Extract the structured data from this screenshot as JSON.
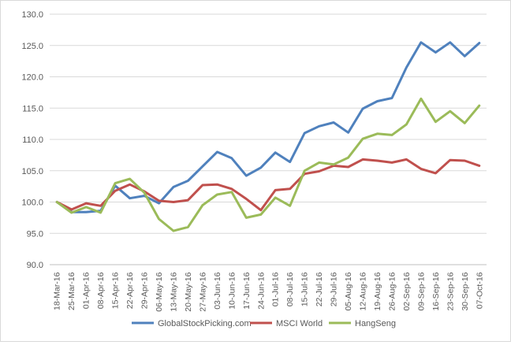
{
  "chart_data": {
    "type": "line",
    "title": "",
    "xlabel": "",
    "ylabel": "",
    "ylim": [
      90,
      130
    ],
    "yticks": [
      90,
      95,
      100,
      105,
      110,
      115,
      120,
      125,
      130
    ],
    "ytick_labels": [
      "90.0",
      "95.0",
      "100.0",
      "105.0",
      "110.0",
      "115.0",
      "120.0",
      "125.0",
      "130.0"
    ],
    "grid": true,
    "legend_position": "bottom",
    "x": [
      "18-Mar-16",
      "25-Mar-16",
      "01-Apr-16",
      "08-Apr-16",
      "15-Apr-16",
      "22-Apr-16",
      "29-Apr-16",
      "06-May-16",
      "13-May-16",
      "20-May-16",
      "27-May-16",
      "03-Jun-16",
      "10-Jun-16",
      "17-Jun-16",
      "24-Jun-16",
      "01-Jul-16",
      "08-Jul-16",
      "15-Jul-16",
      "22-Jul-16",
      "29-Jul-16",
      "05-Aug-16",
      "12-Aug-16",
      "19-Aug-16",
      "26-Aug-16",
      "02-Sep-16",
      "09-Sep-16",
      "16-Sep-16",
      "23-Sep-16",
      "30-Sep-16",
      "07-Oct-16"
    ],
    "series": [
      {
        "name": "GlobalStockPicking.com",
        "color": "#4f81bd",
        "values": [
          100.0,
          98.4,
          98.4,
          98.6,
          102.6,
          100.6,
          101.0,
          99.8,
          102.4,
          103.4,
          105.7,
          108.0,
          107.0,
          104.2,
          105.5,
          107.9,
          106.4,
          111.0,
          112.1,
          112.7,
          111.1,
          114.9,
          116.1,
          116.6,
          121.5,
          125.5,
          123.9,
          125.5,
          123.3,
          125.4
        ]
      },
      {
        "name": "MSCI World",
        "color": "#c0504d",
        "values": [
          100.0,
          98.8,
          99.8,
          99.4,
          101.8,
          102.8,
          101.7,
          100.2,
          100.0,
          100.3,
          102.7,
          102.8,
          102.1,
          100.5,
          98.7,
          101.9,
          102.1,
          104.5,
          104.9,
          105.8,
          105.6,
          106.8,
          106.6,
          106.3,
          106.8,
          105.3,
          104.6,
          106.7,
          106.6,
          105.8
        ]
      },
      {
        "name": "HangSeng",
        "color": "#9bbb59",
        "values": [
          100.0,
          98.3,
          99.2,
          98.3,
          103.0,
          103.7,
          101.5,
          97.3,
          95.4,
          96.0,
          99.5,
          101.2,
          101.6,
          97.5,
          98.0,
          100.7,
          99.4,
          105.0,
          106.3,
          106.0,
          107.1,
          110.1,
          110.9,
          110.7,
          112.4,
          116.5,
          112.8,
          114.5,
          112.6,
          115.4
        ]
      }
    ]
  }
}
